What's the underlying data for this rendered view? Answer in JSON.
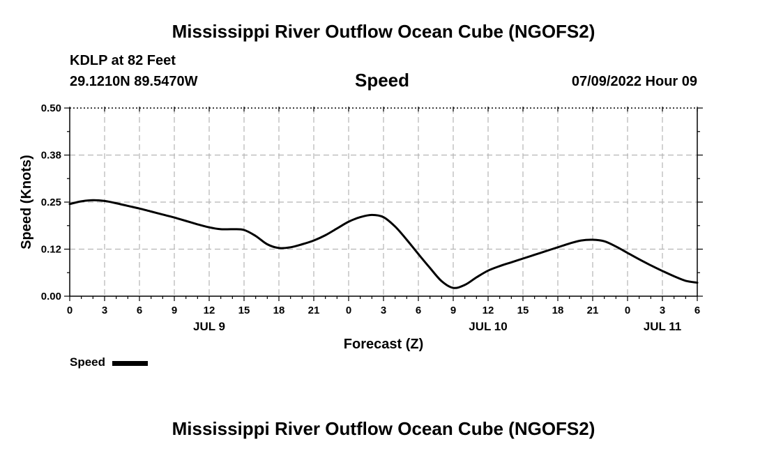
{
  "header": {
    "title": "Mississippi River Outflow Ocean Cube (NGOFS2)",
    "station": "KDLP at 82 Feet",
    "coords": "29.1210N  89.5470W",
    "plot_title": "Speed",
    "datetime": "07/09/2022 Hour 09"
  },
  "footer": {
    "title": "Mississippi River Outflow Ocean Cube (NGOFS2)"
  },
  "legend": {
    "label": "Speed"
  },
  "colors": {
    "line": "#000000",
    "grid": "#b4b4b4",
    "axis": "#000000"
  },
  "chart_data": {
    "type": "line",
    "title": "Speed",
    "xlabel": "Forecast (Z)",
    "ylabel": "Speed (Knots)",
    "xlim": [
      0,
      54
    ],
    "ylim": [
      0,
      0.5
    ],
    "yticks": [
      0,
      0.125,
      0.25,
      0.375,
      0.5
    ],
    "ytick_labels": [
      "0.00",
      "0.12",
      "0.25",
      "0.38",
      "0.50"
    ],
    "xticks": [
      0,
      3,
      6,
      9,
      12,
      15,
      18,
      21,
      24,
      27,
      30,
      33,
      36,
      39,
      42,
      45,
      48,
      51,
      54
    ],
    "xtick_labels": [
      "0",
      "3",
      "6",
      "9",
      "12",
      "15",
      "18",
      "21",
      "0",
      "3",
      "6",
      "9",
      "12",
      "15",
      "18",
      "21",
      "0",
      "3",
      "6"
    ],
    "day_labels": [
      {
        "hour": 12,
        "label": "JUL 9"
      },
      {
        "hour": 36,
        "label": "JUL 10"
      },
      {
        "hour": 51,
        "label": "JUL 11"
      }
    ],
    "grid": true,
    "legend_position": "bottom-left",
    "series": [
      {
        "name": "Speed",
        "x": [
          0,
          1,
          2,
          3,
          4,
          5,
          6,
          7,
          8,
          9,
          10,
          11,
          12,
          13,
          14,
          15,
          16,
          17,
          18,
          19,
          20,
          21,
          22,
          23,
          24,
          25,
          26,
          27,
          28,
          29,
          30,
          31,
          32,
          33,
          34,
          35,
          36,
          37,
          38,
          39,
          40,
          41,
          42,
          43,
          44,
          45,
          46,
          47,
          48,
          49,
          50,
          51,
          52,
          53,
          54
        ],
        "values": [
          0.245,
          0.252,
          0.255,
          0.253,
          0.247,
          0.24,
          0.233,
          0.225,
          0.217,
          0.209,
          0.2,
          0.191,
          0.183,
          0.178,
          0.178,
          0.176,
          0.16,
          0.138,
          0.128,
          0.13,
          0.138,
          0.148,
          0.162,
          0.18,
          0.198,
          0.21,
          0.216,
          0.21,
          0.185,
          0.15,
          0.112,
          0.075,
          0.04,
          0.022,
          0.03,
          0.05,
          0.068,
          0.08,
          0.09,
          0.1,
          0.11,
          0.12,
          0.13,
          0.14,
          0.148,
          0.15,
          0.146,
          0.132,
          0.115,
          0.098,
          0.082,
          0.067,
          0.053,
          0.041,
          0.036
        ]
      }
    ]
  }
}
